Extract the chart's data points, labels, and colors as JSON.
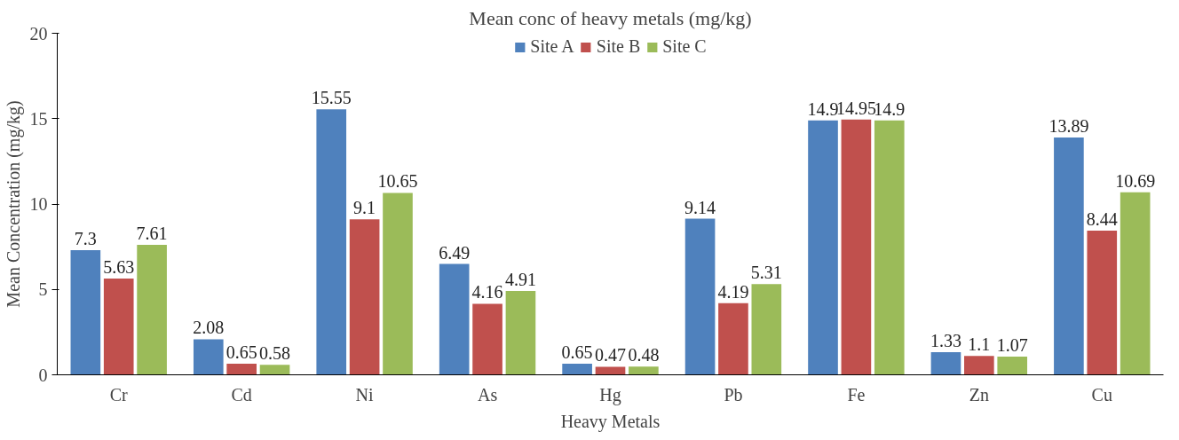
{
  "chart_data": {
    "type": "bar",
    "title": "Mean conc of heavy metals (mg/kg)",
    "xlabel": "Heavy Metals",
    "ylabel": "Mean Concentration (mg/kg)",
    "categories": [
      "Cr",
      "Cd",
      "Ni",
      "As",
      "Hg",
      "Pb",
      "Fe",
      "Zn",
      "Cu"
    ],
    "series": [
      {
        "name": "Site A",
        "color": "#4f81bd",
        "values": [
          7.3,
          2.08,
          15.55,
          6.49,
          0.65,
          9.14,
          14.9,
          1.33,
          13.89
        ]
      },
      {
        "name": "Site B",
        "color": "#c0504d",
        "values": [
          5.63,
          0.65,
          9.1,
          4.16,
          0.47,
          4.19,
          14.95,
          1.1,
          8.44
        ]
      },
      {
        "name": "Site C",
        "color": "#9bbb59",
        "values": [
          7.61,
          0.58,
          10.65,
          4.91,
          0.48,
          5.31,
          14.9,
          1.07,
          10.69
        ]
      }
    ],
    "ylim": [
      0,
      20
    ],
    "yticks": [
      0,
      5,
      10,
      15,
      20
    ],
    "grid": false,
    "legend": "top",
    "data_labels": true
  }
}
